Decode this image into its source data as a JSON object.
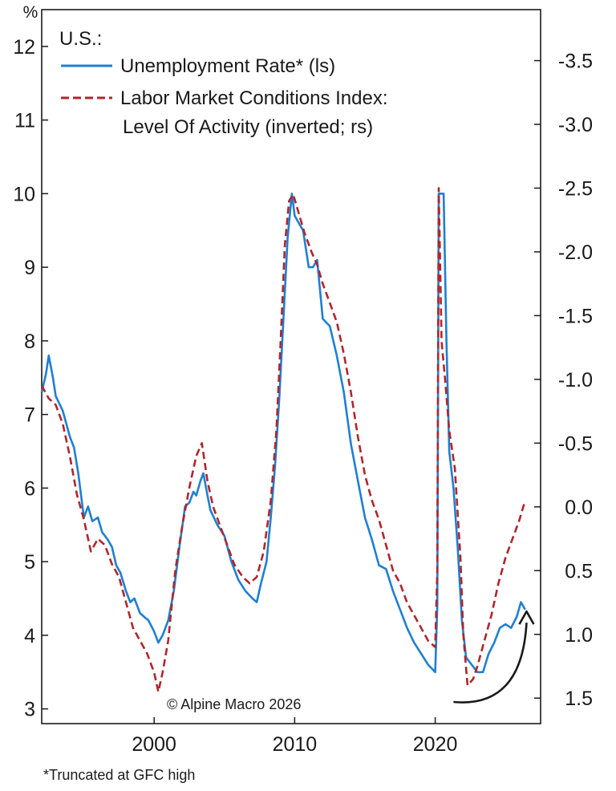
{
  "chart_data": {
    "type": "line",
    "title": "",
    "region_label": "U.S.:",
    "left_axis_unit": "%",
    "x": {
      "range": [
        1992.0,
        2027.5
      ],
      "ticks": [
        2000,
        2010,
        2020
      ],
      "tick_labels": [
        "2000",
        "2010",
        "2020"
      ]
    },
    "y_left": {
      "range": [
        2.8,
        12.5
      ],
      "ticks": [
        3,
        4,
        5,
        6,
        7,
        8,
        9,
        10,
        11,
        12
      ],
      "tick_labels": [
        "3",
        "4",
        "5",
        "6",
        "7",
        "8",
        "9",
        "10",
        "11",
        "12"
      ]
    },
    "y_right": {
      "range": [
        1.7,
        -3.9
      ],
      "inverted": true,
      "ticks": [
        1.5,
        1.0,
        0.5,
        0.0,
        -0.5,
        -1.0,
        -1.5,
        -2.0,
        -2.5,
        -3.0,
        -3.5
      ],
      "tick_labels": [
        "1.5",
        "1.0",
        "0.5",
        "0.0",
        "-0.5",
        "-1.0",
        "-1.5",
        "-2.0",
        "-2.5",
        "-3.0",
        "-3.5"
      ]
    },
    "legend": {
      "position": "top-left",
      "entries": [
        {
          "label": "Unemployment Rate* (ls)",
          "style": "solid"
        },
        {
          "label": "Labor Market Conditions Index:",
          "style": "dashed"
        },
        {
          "label": "Level Of Activity (inverted; rs)",
          "style": "none"
        }
      ]
    },
    "series": [
      {
        "name": "Unemployment Rate* (ls)",
        "axis": "left",
        "color": "#1f7fd1",
        "style": "solid",
        "points": [
          [
            1992.0,
            7.3
          ],
          [
            1992.3,
            7.55
          ],
          [
            1992.5,
            7.8
          ],
          [
            1992.8,
            7.5
          ],
          [
            1993.0,
            7.25
          ],
          [
            1993.5,
            7.05
          ],
          [
            1994.0,
            6.7
          ],
          [
            1994.3,
            6.55
          ],
          [
            1994.6,
            6.2
          ],
          [
            1995.0,
            5.6
          ],
          [
            1995.3,
            5.75
          ],
          [
            1995.6,
            5.55
          ],
          [
            1996.0,
            5.6
          ],
          [
            1996.3,
            5.4
          ],
          [
            1996.7,
            5.3
          ],
          [
            1997.0,
            5.2
          ],
          [
            1997.3,
            4.95
          ],
          [
            1997.6,
            4.85
          ],
          [
            1998.0,
            4.6
          ],
          [
            1998.3,
            4.45
          ],
          [
            1998.6,
            4.5
          ],
          [
            1999.0,
            4.3
          ],
          [
            1999.3,
            4.25
          ],
          [
            1999.6,
            4.2
          ],
          [
            2000.0,
            4.05
          ],
          [
            2000.3,
            3.9
          ],
          [
            2000.6,
            4.0
          ],
          [
            2001.0,
            4.2
          ],
          [
            2001.4,
            4.6
          ],
          [
            2001.8,
            5.2
          ],
          [
            2002.2,
            5.75
          ],
          [
            2002.5,
            5.8
          ],
          [
            2002.8,
            5.95
          ],
          [
            2003.0,
            5.9
          ],
          [
            2003.3,
            6.1
          ],
          [
            2003.5,
            6.2
          ],
          [
            2003.8,
            5.9
          ],
          [
            2004.0,
            5.7
          ],
          [
            2004.5,
            5.5
          ],
          [
            2005.0,
            5.35
          ],
          [
            2005.5,
            5.0
          ],
          [
            2006.0,
            4.75
          ],
          [
            2006.5,
            4.6
          ],
          [
            2007.0,
            4.5
          ],
          [
            2007.3,
            4.45
          ],
          [
            2007.6,
            4.7
          ],
          [
            2008.0,
            5.0
          ],
          [
            2008.3,
            5.6
          ],
          [
            2008.6,
            6.3
          ],
          [
            2008.9,
            7.2
          ],
          [
            2009.2,
            8.3
          ],
          [
            2009.5,
            9.4
          ],
          [
            2009.8,
            10.0
          ],
          [
            2010.0,
            9.7
          ],
          [
            2010.3,
            9.6
          ],
          [
            2010.6,
            9.5
          ],
          [
            2011.0,
            9.0
          ],
          [
            2011.3,
            9.0
          ],
          [
            2011.6,
            9.1
          ],
          [
            2012.0,
            8.3
          ],
          [
            2012.5,
            8.2
          ],
          [
            2013.0,
            7.8
          ],
          [
            2013.5,
            7.3
          ],
          [
            2014.0,
            6.6
          ],
          [
            2014.5,
            6.1
          ],
          [
            2015.0,
            5.6
          ],
          [
            2015.5,
            5.3
          ],
          [
            2016.0,
            4.95
          ],
          [
            2016.5,
            4.9
          ],
          [
            2017.0,
            4.6
          ],
          [
            2017.5,
            4.35
          ],
          [
            2018.0,
            4.1
          ],
          [
            2018.5,
            3.9
          ],
          [
            2019.0,
            3.75
          ],
          [
            2019.5,
            3.6
          ],
          [
            2020.0,
            3.5
          ],
          [
            2020.15,
            4.4
          ],
          [
            2020.25,
            10.0
          ],
          [
            2020.6,
            10.0
          ],
          [
            2020.8,
            8.0
          ],
          [
            2021.0,
            6.5
          ],
          [
            2021.3,
            6.0
          ],
          [
            2021.6,
            5.2
          ],
          [
            2021.9,
            4.2
          ],
          [
            2022.2,
            3.7
          ],
          [
            2022.6,
            3.6
          ],
          [
            2023.0,
            3.5
          ],
          [
            2023.4,
            3.5
          ],
          [
            2023.8,
            3.75
          ],
          [
            2024.2,
            3.9
          ],
          [
            2024.6,
            4.1
          ],
          [
            2025.0,
            4.15
          ],
          [
            2025.4,
            4.1
          ],
          [
            2025.8,
            4.25
          ],
          [
            2026.1,
            4.45
          ],
          [
            2026.4,
            4.35
          ]
        ]
      },
      {
        "name": "Labor Market Conditions Index: Level Of Activity (inverted; rs)",
        "axis": "right",
        "color": "#b0262c",
        "style": "dashed",
        "points": [
          [
            1992.0,
            -0.95
          ],
          [
            1992.5,
            -0.85
          ],
          [
            1993.0,
            -0.8
          ],
          [
            1993.5,
            -0.65
          ],
          [
            1994.0,
            -0.4
          ],
          [
            1994.5,
            -0.1
          ],
          [
            1995.0,
            0.1
          ],
          [
            1995.5,
            0.35
          ],
          [
            1996.0,
            0.25
          ],
          [
            1996.5,
            0.3
          ],
          [
            1997.0,
            0.45
          ],
          [
            1997.5,
            0.55
          ],
          [
            1998.0,
            0.75
          ],
          [
            1998.5,
            0.95
          ],
          [
            1999.0,
            1.05
          ],
          [
            1999.5,
            1.15
          ],
          [
            2000.0,
            1.3
          ],
          [
            2000.3,
            1.45
          ],
          [
            2000.6,
            1.3
          ],
          [
            2001.0,
            1.05
          ],
          [
            2001.5,
            0.5
          ],
          [
            2002.0,
            0.15
          ],
          [
            2002.5,
            -0.15
          ],
          [
            2003.0,
            -0.4
          ],
          [
            2003.4,
            -0.5
          ],
          [
            2003.8,
            -0.2
          ],
          [
            2004.2,
            0.0
          ],
          [
            2004.7,
            0.15
          ],
          [
            2005.2,
            0.3
          ],
          [
            2005.7,
            0.45
          ],
          [
            2006.3,
            0.55
          ],
          [
            2006.8,
            0.6
          ],
          [
            2007.3,
            0.55
          ],
          [
            2007.8,
            0.35
          ],
          [
            2008.3,
            -0.05
          ],
          [
            2008.7,
            -0.6
          ],
          [
            2009.0,
            -1.3
          ],
          [
            2009.3,
            -2.05
          ],
          [
            2009.6,
            -2.4
          ],
          [
            2009.9,
            -2.45
          ],
          [
            2010.3,
            -2.3
          ],
          [
            2010.7,
            -2.15
          ],
          [
            2011.2,
            -2.0
          ],
          [
            2011.6,
            -1.9
          ],
          [
            2012.0,
            -1.75
          ],
          [
            2012.5,
            -1.6
          ],
          [
            2013.0,
            -1.45
          ],
          [
            2013.5,
            -1.2
          ],
          [
            2014.0,
            -0.9
          ],
          [
            2014.5,
            -0.55
          ],
          [
            2015.0,
            -0.25
          ],
          [
            2015.5,
            -0.05
          ],
          [
            2016.0,
            0.1
          ],
          [
            2016.5,
            0.3
          ],
          [
            2017.0,
            0.5
          ],
          [
            2017.5,
            0.6
          ],
          [
            2018.0,
            0.75
          ],
          [
            2018.5,
            0.85
          ],
          [
            2019.0,
            0.95
          ],
          [
            2019.5,
            1.05
          ],
          [
            2020.0,
            1.1
          ],
          [
            2020.15,
            0.5
          ],
          [
            2020.25,
            -2.5
          ],
          [
            2020.45,
            -1.3
          ],
          [
            2020.7,
            -1.0
          ],
          [
            2021.0,
            -0.6
          ],
          [
            2021.4,
            -0.3
          ],
          [
            2021.8,
            0.4
          ],
          [
            2022.0,
            1.0
          ],
          [
            2022.3,
            1.4
          ],
          [
            2022.7,
            1.35
          ],
          [
            2023.0,
            1.25
          ],
          [
            2023.5,
            1.05
          ],
          [
            2024.0,
            0.85
          ],
          [
            2024.5,
            0.6
          ],
          [
            2025.0,
            0.4
          ],
          [
            2025.5,
            0.25
          ],
          [
            2026.0,
            0.1
          ],
          [
            2026.4,
            -0.05
          ]
        ]
      }
    ],
    "annotations": {
      "copyright": "© Alpine Macro 2026",
      "footnote": "*Truncated at GFC high",
      "arrow": {
        "from": [
          2021.3,
          1.53
        ],
        "to": [
          2026.5,
          0.82
        ],
        "color": "#1a1a1a"
      }
    }
  }
}
